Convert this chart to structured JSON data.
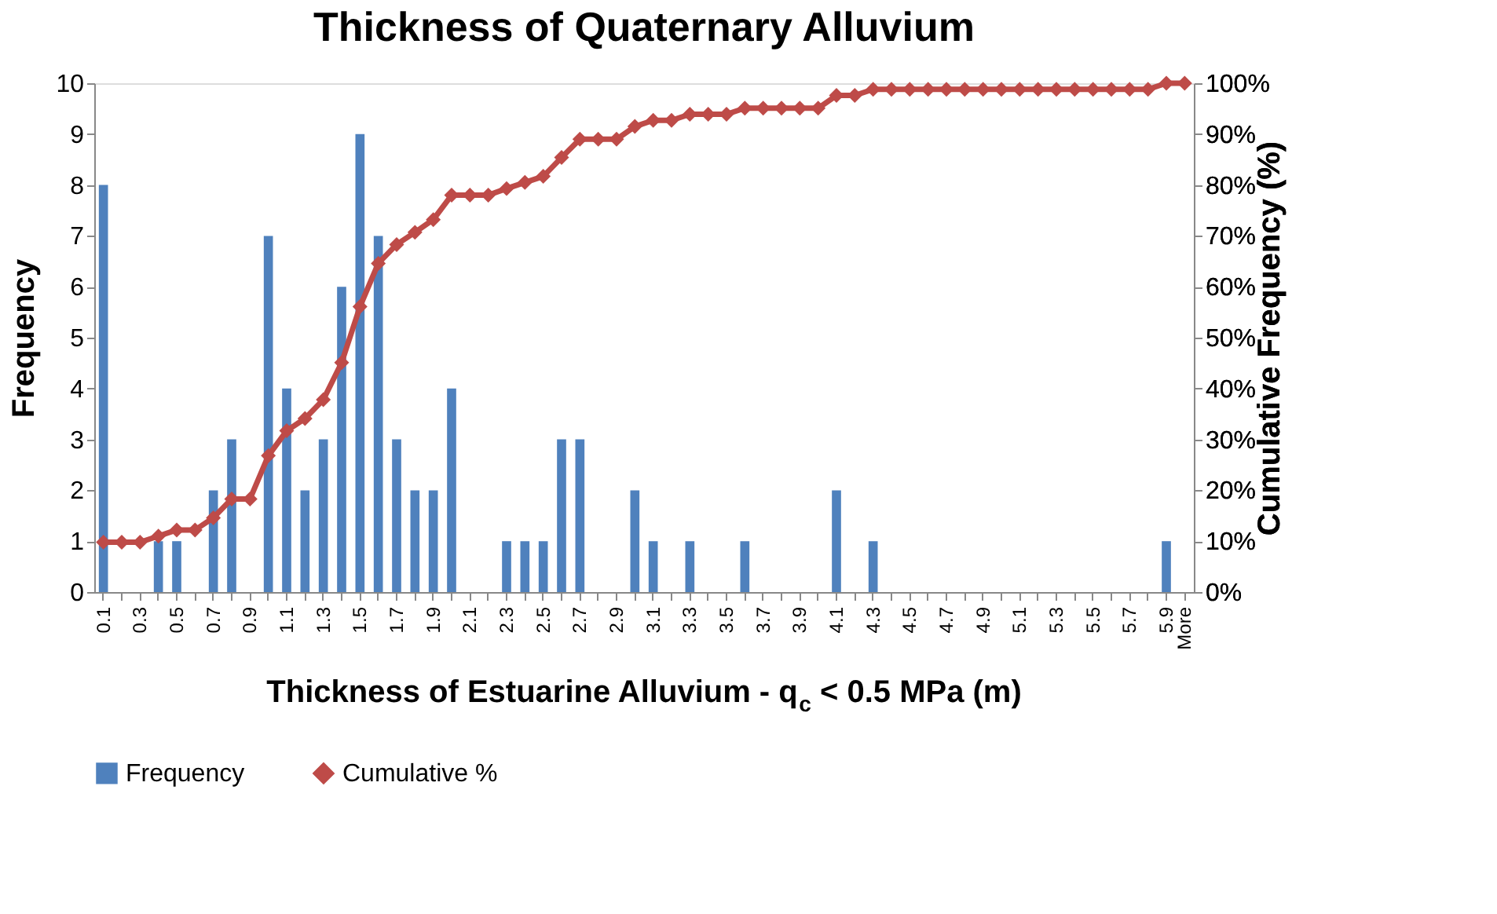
{
  "chart_data": {
    "type": "bar",
    "title": "Thickness of Quaternary Alluvium",
    "xlabel": "Thickness of Estuarine Alluvium - q$_{c}$ < 0.5 MPa (m)",
    "ylabel": "Frequency",
    "y2label": "Cumulative Frequency (%)",
    "categories": [
      "0.1",
      null,
      "0.3",
      null,
      "0.5",
      null,
      "0.7",
      null,
      "0.9",
      null,
      "1.1",
      null,
      "1.3",
      null,
      "1.5",
      null,
      "1.7",
      null,
      "1.9",
      null,
      "2.1",
      null,
      "2.3",
      null,
      "2.5",
      null,
      "2.7",
      null,
      "2.9",
      null,
      "3.1",
      null,
      "3.3",
      null,
      "3.5",
      null,
      "3.7",
      null,
      "3.9",
      null,
      "4.1",
      null,
      "4.3",
      null,
      "4.5",
      null,
      "4.7",
      null,
      "4.9",
      null,
      "5.1",
      null,
      "5.3",
      null,
      "5.5",
      null,
      "5.7",
      null,
      "5.9",
      "More"
    ],
    "series": [
      {
        "name": "Frequency",
        "type": "bar",
        "color": "#4f81bd",
        "values": [
          8,
          0,
          0,
          1,
          1,
          0,
          2,
          3,
          0,
          7,
          4,
          2,
          3,
          6,
          9,
          7,
          3,
          2,
          2,
          4,
          0,
          0,
          1,
          1,
          1,
          3,
          3,
          0,
          0,
          2,
          1,
          0,
          1,
          0,
          0,
          1,
          0,
          0,
          0,
          0,
          2,
          0,
          1,
          0,
          0,
          0,
          0,
          0,
          0,
          0,
          0,
          0,
          0,
          0,
          0,
          0,
          0,
          0,
          1,
          0
        ]
      },
      {
        "name": "Cumulative %",
        "type": "line",
        "axis": "y2",
        "color": "#be4b48",
        "values": [
          9.8,
          9.8,
          9.8,
          11.0,
          12.2,
          12.2,
          14.6,
          18.3,
          18.3,
          26.8,
          31.7,
          34.1,
          37.8,
          45.1,
          56.1,
          64.6,
          68.3,
          70.7,
          73.2,
          78.0,
          78.0,
          78.0,
          79.3,
          80.5,
          81.7,
          85.4,
          89.0,
          89.0,
          89.0,
          91.5,
          92.7,
          92.7,
          93.9,
          93.9,
          93.9,
          95.1,
          95.1,
          95.1,
          95.1,
          95.1,
          97.6,
          97.6,
          98.8,
          98.8,
          98.8,
          98.8,
          98.8,
          98.8,
          98.8,
          98.8,
          98.8,
          98.8,
          98.8,
          98.8,
          98.8,
          98.8,
          98.8,
          98.8,
          100,
          100
        ]
      }
    ],
    "ylim": [
      0,
      10
    ],
    "yticks": [
      0,
      1,
      2,
      3,
      4,
      5,
      6,
      7,
      8,
      9,
      10
    ],
    "y2lim": [
      0,
      100
    ],
    "y2ticks": [
      {
        "value": 0,
        "label": "0%"
      },
      {
        "value": 10,
        "label": "10%"
      },
      {
        "value": 20,
        "label": "20%"
      },
      {
        "value": 30,
        "label": "30%"
      },
      {
        "value": 40,
        "label": "40%"
      },
      {
        "value": 50,
        "label": "50%"
      },
      {
        "value": 60,
        "label": "60%"
      },
      {
        "value": 70,
        "label": "70%"
      },
      {
        "value": 80,
        "label": "80%"
      },
      {
        "value": 90,
        "label": "90%"
      },
      {
        "value": 100,
        "label": "100%"
      }
    ],
    "marker": "diamond",
    "line_style": "solid",
    "grid": false,
    "legend": "bottom"
  }
}
